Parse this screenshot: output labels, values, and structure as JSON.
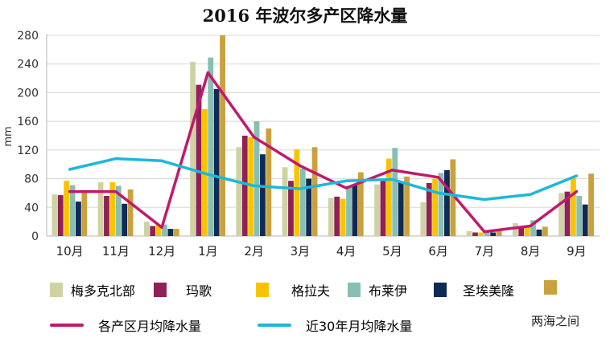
{
  "chart_data": {
    "type": "bar",
    "title": "2016 年波尔多产区降水量",
    "xlabel": "",
    "ylabel": "mm",
    "ylim": [
      0,
      280
    ],
    "yticks": [
      0,
      40,
      80,
      120,
      160,
      200,
      240,
      280
    ],
    "categories": [
      "10月",
      "11月",
      "12月",
      "1月",
      "2月",
      "3月",
      "4月",
      "5月",
      "6月",
      "7月",
      "8月",
      "9月"
    ],
    "series": [
      {
        "name": "梅多克北部",
        "color": "#cfd3a3",
        "values": [
          58,
          75,
          20,
          243,
          124,
          96,
          53,
          72,
          47,
          7,
          18,
          60
        ]
      },
      {
        "name": "玛歌",
        "color": "#8e2156",
        "values": [
          57,
          56,
          14,
          211,
          140,
          77,
          55,
          80,
          74,
          5,
          14,
          62
        ]
      },
      {
        "name": "格拉夫",
        "color": "#f8c400",
        "values": [
          77,
          75,
          16,
          177,
          138,
          121,
          52,
          108,
          80,
          5,
          13,
          81
        ]
      },
      {
        "name": "布莱伊",
        "color": "#88bfb2",
        "values": [
          71,
          70,
          16,
          249,
          160,
          94,
          70,
          123,
          88,
          6,
          22,
          56
        ]
      },
      {
        "name": "圣埃美隆",
        "color": "#0e2a56",
        "values": [
          48,
          45,
          10,
          205,
          114,
          80,
          72,
          75,
          92,
          5,
          9,
          44
        ]
      },
      {
        "name": "两海之间",
        "color": "#c9a13e",
        "values": [
          63,
          65,
          10,
          280,
          150,
          124,
          89,
          83,
          107,
          7,
          13,
          87
        ]
      }
    ],
    "lines": [
      {
        "name": "各产区月均降水量",
        "color": "#c0196d",
        "values": [
          62,
          62,
          12,
          228,
          138,
          98,
          67,
          92,
          82,
          6,
          14,
          62
        ]
      },
      {
        "name": "近30年月均降水量",
        "color": "#1db8d8",
        "values": [
          93,
          108,
          105,
          86,
          70,
          66,
          77,
          79,
          60,
          51,
          58,
          84
        ]
      }
    ]
  },
  "colors": {
    "axis": "#b5b5b5",
    "grid": "#d8d8d8",
    "text": "#222222"
  }
}
